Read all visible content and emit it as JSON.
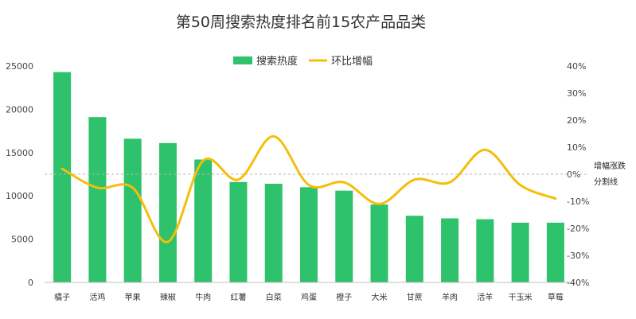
{
  "chart_data": {
    "type": "bar",
    "title": "第50周搜索热度排名前15农产品品类",
    "categories": [
      "橘子",
      "活鸡",
      "苹果",
      "辣椒",
      "牛肉",
      "红薯",
      "白菜",
      "鸡蛋",
      "橙子",
      "大米",
      "甘蔗",
      "羊肉",
      "活羊",
      "干玉米",
      "草莓"
    ],
    "series": [
      {
        "name": "搜索热度",
        "type": "bar",
        "axis": "left",
        "color": "#2DC26B",
        "values": [
          24300,
          19100,
          16600,
          16100,
          14200,
          11600,
          11400,
          11000,
          10600,
          9000,
          7700,
          7400,
          7300,
          6900,
          6900
        ]
      },
      {
        "name": "环比增幅",
        "type": "line",
        "axis": "right",
        "color": "#F5BE0A",
        "values": [
          2,
          -5,
          -5,
          -25,
          5,
          -2,
          14,
          -4,
          -3,
          -11,
          -2,
          -3,
          9,
          -4,
          -9
        ]
      }
    ],
    "y_left": {
      "min": 0,
      "max": 25000,
      "step": 5000,
      "ticks": [
        "0",
        "5000",
        "10000",
        "15000",
        "20000",
        "25000"
      ]
    },
    "y_right": {
      "min": -40,
      "max": 40,
      "step": 10,
      "ticks": [
        "-40%",
        "-30%",
        "-20%",
        "-10%",
        "0%",
        "10%",
        "20%",
        "30%",
        "40%"
      ]
    },
    "reference_line": {
      "value": 0,
      "axis": "right",
      "label_line1": "增幅涨跌",
      "label_line2": "分割线"
    },
    "legend": {
      "position": "top-center"
    },
    "grid": false
  }
}
